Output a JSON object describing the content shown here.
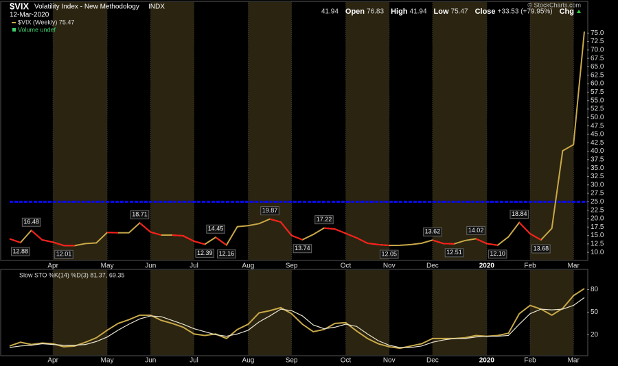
{
  "chart_data": [
    {
      "type": "line",
      "title": "$VIX",
      "subtitle": "Volatility Index - New Methodology",
      "exchange": "INDX",
      "date": "12-Mar-2020",
      "quote": [
        {
          "label": "Open",
          "value": "41.94"
        },
        {
          "label": "High",
          "value": "76.83"
        },
        {
          "label": "Low",
          "value": "41.94"
        },
        {
          "label": "Close",
          "value": "75.47"
        },
        {
          "label": "Chg",
          "value": "+33.53 (+79.95%)"
        }
      ],
      "credit": "© StockCharts.com",
      "volume_note": "Volume undef",
      "categories": [
        null,
        null,
        null,
        null,
        "Apr",
        null,
        null,
        null,
        null,
        "May",
        null,
        null,
        null,
        "Jun",
        null,
        null,
        null,
        "Jul",
        null,
        null,
        null,
        null,
        "Aug",
        null,
        null,
        null,
        "Sep",
        null,
        null,
        null,
        null,
        "Oct",
        null,
        null,
        null,
        "Nov",
        null,
        null,
        null,
        "Dec",
        null,
        null,
        null,
        null,
        "2020",
        null,
        null,
        null,
        "Feb",
        null,
        null,
        null,
        "Mar",
        null
      ],
      "series": [
        {
          "name": "$VIX (Weekly) 75.47",
          "color": "#c9a948",
          "down_color": "#ff1a1a",
          "values": [
            14.0,
            12.88,
            16.48,
            13.7,
            13.0,
            12.01,
            12.0,
            12.6,
            12.8,
            15.9,
            15.8,
            15.8,
            18.71,
            16.0,
            15.1,
            15.1,
            14.9,
            13.3,
            12.39,
            14.45,
            12.16,
            17.6,
            17.9,
            18.5,
            19.87,
            18.98,
            15.0,
            13.74,
            15.3,
            17.22,
            16.9,
            15.6,
            14.3,
            12.7,
            12.3,
            12.05,
            12.1,
            12.3,
            12.7,
            13.62,
            12.6,
            12.51,
            13.5,
            14.02,
            12.6,
            12.1,
            14.6,
            18.84,
            15.5,
            13.68,
            17.1,
            40.1,
            41.94,
            75.47
          ],
          "value_labels": [
            null,
            "12.88",
            "16.48",
            null,
            null,
            "12.01",
            null,
            null,
            null,
            null,
            null,
            null,
            "18.71",
            null,
            null,
            null,
            null,
            null,
            "12.39",
            "14.45",
            "12.16",
            null,
            null,
            null,
            "19.87",
            null,
            null,
            "13.74",
            null,
            "17.22",
            null,
            null,
            null,
            null,
            null,
            "12.05",
            null,
            null,
            null,
            "13.62",
            null,
            "12.51",
            null,
            "14.02",
            null,
            "12.10",
            null,
            "18.84",
            null,
            "13.68",
            null,
            null,
            null,
            null
          ]
        }
      ],
      "reference_line": {
        "value": 25,
        "color": "#0a0aff"
      },
      "ylim": [
        8,
        84
      ],
      "yticks": [
        {
          "value": 10,
          "label": "10.0"
        },
        {
          "value": 12.5,
          "label": "12.5"
        },
        {
          "value": 15,
          "label": "15.0"
        },
        {
          "value": 17.5,
          "label": "17.5"
        },
        {
          "value": 20,
          "label": "20.0"
        },
        {
          "value": 22.5,
          "label": "22.5"
        },
        {
          "value": 25,
          "label": "25.0"
        },
        {
          "value": 27.5,
          "label": "27.5"
        },
        {
          "value": 30,
          "label": "30.0"
        },
        {
          "value": 32.5,
          "label": "32.5"
        },
        {
          "value": 35,
          "label": "35.0"
        },
        {
          "value": 37.5,
          "label": "37.5"
        },
        {
          "value": 40,
          "label": "40.0"
        },
        {
          "value": 42.5,
          "label": "42.5"
        },
        {
          "value": 45,
          "label": "45.0"
        },
        {
          "value": 47.5,
          "label": "47.5"
        },
        {
          "value": 50,
          "label": "50.0"
        },
        {
          "value": 52.5,
          "label": "52.5"
        },
        {
          "value": 55,
          "label": "55.0"
        },
        {
          "value": 57.5,
          "label": "57.5"
        },
        {
          "value": 60,
          "label": "60.0"
        },
        {
          "value": 62.5,
          "label": "62.5"
        },
        {
          "value": 65,
          "label": "65.0"
        },
        {
          "value": 67.5,
          "label": "67.5"
        },
        {
          "value": 70,
          "label": "70.0"
        },
        {
          "value": 72.5,
          "label": "72.5"
        },
        {
          "value": 75,
          "label": "75.0"
        }
      ]
    },
    {
      "type": "line",
      "title": "Slow STO %K(14) %D(3) 81.37, 69.35",
      "categories": [
        null,
        null,
        null,
        null,
        "Apr",
        null,
        null,
        null,
        null,
        "May",
        null,
        null,
        null,
        "Jun",
        null,
        null,
        null,
        "Jul",
        null,
        null,
        null,
        null,
        "Aug",
        null,
        null,
        null,
        "Sep",
        null,
        null,
        null,
        null,
        "Oct",
        null,
        null,
        null,
        "Nov",
        null,
        null,
        null,
        "Dec",
        null,
        null,
        null,
        null,
        "2020",
        null,
        null,
        null,
        "Feb",
        null,
        null,
        null,
        "Mar",
        null
      ],
      "series": [
        {
          "color": "#c9a948",
          "values": [
            5,
            10,
            7,
            9,
            8,
            4,
            5,
            10,
            16,
            26,
            35,
            40,
            46,
            46,
            39,
            35,
            30,
            21,
            19,
            21,
            15,
            27,
            34,
            49,
            52,
            56,
            48,
            34,
            24,
            27,
            35,
            36,
            25,
            15,
            8,
            4,
            2,
            5,
            8,
            15,
            15,
            15,
            16,
            19,
            18,
            19,
            22,
            48,
            59,
            54,
            46,
            55,
            72,
            81.37
          ]
        },
        {
          "color": "#e8e4d0",
          "values": [
            3,
            5,
            6,
            8,
            7,
            6,
            6,
            7,
            11,
            17,
            26,
            34,
            41,
            45,
            44,
            39,
            34,
            28,
            24,
            20,
            18,
            21,
            26,
            37,
            45,
            54,
            52,
            45,
            33,
            28,
            30,
            34,
            31,
            21,
            12,
            6,
            3,
            3,
            5,
            10,
            13,
            15,
            15,
            17,
            18,
            18,
            19,
            34,
            48,
            54,
            53,
            54,
            59,
            69.35
          ]
        }
      ],
      "ylim": [
        -7,
        106
      ],
      "yticks": [
        20,
        50,
        80
      ]
    }
  ]
}
